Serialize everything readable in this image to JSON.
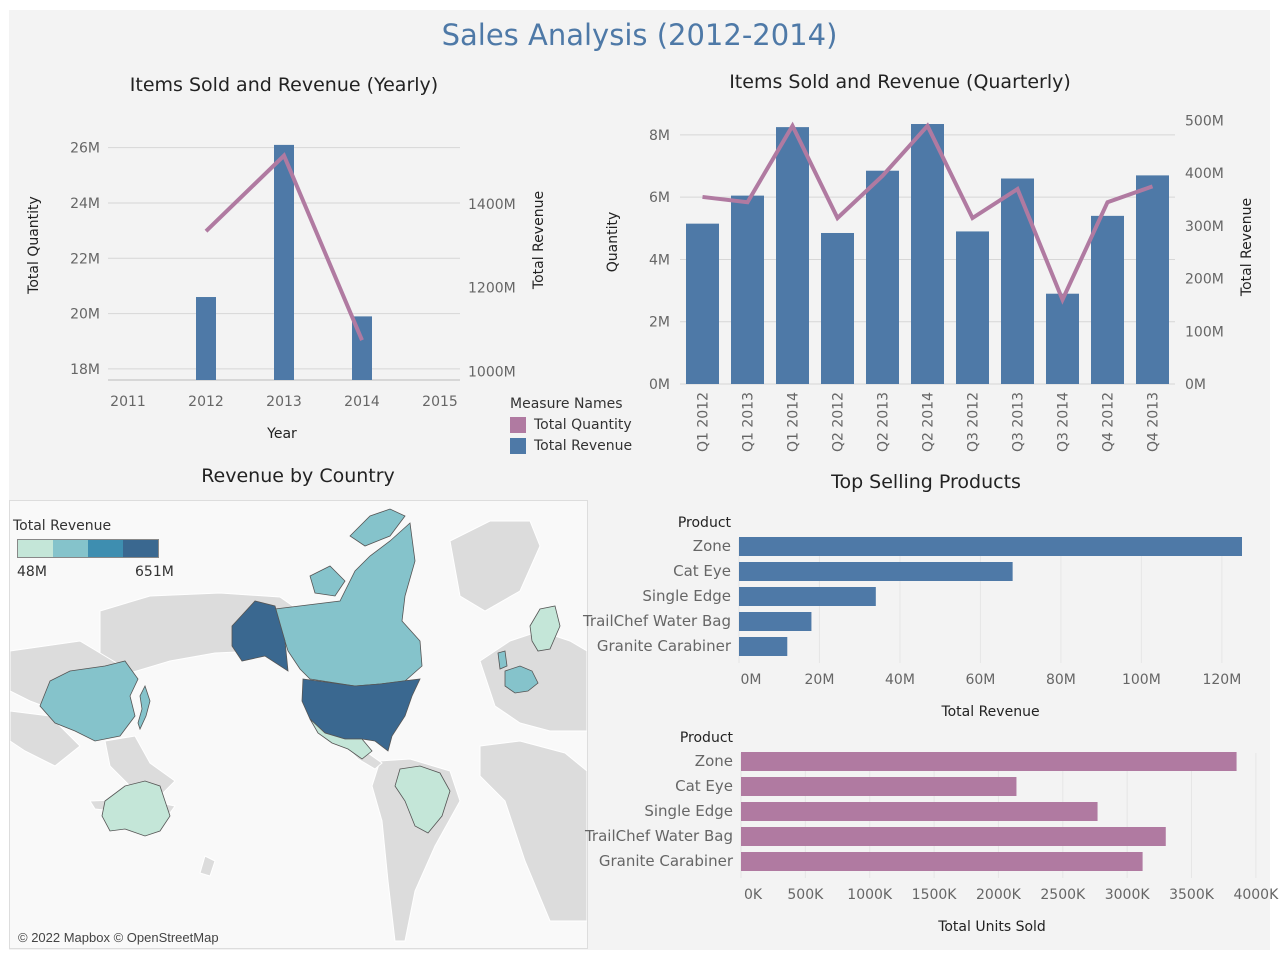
{
  "dashboard": {
    "title": "Sales Analysis (2012-2014)"
  },
  "legend": {
    "title": "Measure Names",
    "items": [
      {
        "label": "Total Quantity",
        "color": "#b07aa1"
      },
      {
        "label": "Total Revenue",
        "color": "#4e79a7"
      }
    ]
  },
  "map": {
    "title": "Revenue by Country",
    "legend_title": "Total Revenue",
    "legend_min": "48M",
    "legend_max": "651M",
    "color_scale": [
      "#c4e6d8",
      "#85c3cb",
      "#3e8eb0",
      "#3a6890"
    ],
    "credit": "© 2022 Mapbox © OpenStreetMap",
    "countries_shaded": [
      "United States",
      "Canada",
      "Mexico",
      "Alaska (US)",
      "China",
      "Japan",
      "Australia",
      "Brazil",
      "Germany",
      "France",
      "United Kingdom",
      "Sweden",
      "Finland"
    ]
  },
  "chart_data": [
    {
      "id": "yearly",
      "type": "bar",
      "title": "Items Sold and Revenue (Yearly)",
      "xlabel": "Year",
      "ylabel": "Total Quantity",
      "y2label": "Total Revenue",
      "x_ticks": [
        "2011",
        "2012",
        "2013",
        "2014",
        "2015"
      ],
      "categories": [
        "2012",
        "2013",
        "2014"
      ],
      "ylim": [
        17.6,
        27
      ],
      "y_ticks": [
        "18M",
        "20M",
        "22M",
        "24M",
        "26M"
      ],
      "y_tick_values": [
        18,
        20,
        22,
        24,
        26
      ],
      "y2lim": [
        980,
        1600
      ],
      "y2_ticks": [
        "1000M",
        "1200M",
        "1400M"
      ],
      "y2_tick_values": [
        1000,
        1200,
        1400
      ],
      "series": [
        {
          "name": "Total Revenue",
          "kind": "bar",
          "axis": "left",
          "color": "#4e79a7",
          "values": [
            20.6,
            26.1,
            19.9
          ]
        },
        {
          "name": "Total Quantity",
          "kind": "line",
          "axis": "right",
          "color": "#b07aa1",
          "values": [
            1335,
            1515,
            1075
          ]
        }
      ]
    },
    {
      "id": "quarterly",
      "type": "bar",
      "title": "Items Sold and Revenue (Quarterly)",
      "ylabel": "Quantity",
      "y2label": "Total Revenue",
      "categories": [
        "Q1 2012",
        "Q1 2013",
        "Q1 2014",
        "Q2 2012",
        "Q2 2013",
        "Q2 2014",
        "Q3 2012",
        "Q3 2013",
        "Q3 2014",
        "Q4 2012",
        "Q4 2013"
      ],
      "ylim": [
        0,
        8.8
      ],
      "y_ticks": [
        "0M",
        "2M",
        "4M",
        "6M",
        "8M"
      ],
      "y_tick_values": [
        0,
        2,
        4,
        6,
        8
      ],
      "y2lim": [
        0,
        520
      ],
      "y2_ticks": [
        "0M",
        "100M",
        "200M",
        "300M",
        "400M",
        "500M"
      ],
      "y2_tick_values": [
        0,
        100,
        200,
        300,
        400,
        500
      ],
      "series": [
        {
          "name": "Total Revenue",
          "kind": "bar",
          "axis": "left",
          "color": "#4e79a7",
          "values": [
            5.15,
            6.05,
            8.25,
            4.85,
            6.85,
            8.35,
            4.9,
            6.6,
            2.9,
            5.4,
            6.7
          ]
        },
        {
          "name": "Total Quantity",
          "kind": "line",
          "axis": "right",
          "color": "#b07aa1",
          "values": [
            355,
            345,
            490,
            315,
            395,
            490,
            315,
            370,
            160,
            345,
            375
          ]
        }
      ]
    },
    {
      "id": "top_revenue",
      "type": "bar",
      "orientation": "horizontal",
      "title": "Top Selling Products",
      "ycat_title": "Product",
      "xlabel": "Total Revenue",
      "categories": [
        "Zone",
        "Cat Eye",
        "Single Edge",
        "TrailChef Water Bag",
        "Granite Carabiner"
      ],
      "values": [
        125,
        68,
        34,
        18,
        12
      ],
      "unit": "M",
      "xlim": [
        0,
        125
      ],
      "x_ticks": [
        "0M",
        "20M",
        "40M",
        "60M",
        "80M",
        "100M",
        "120M"
      ],
      "x_tick_values": [
        0,
        20,
        40,
        60,
        80,
        100,
        120
      ],
      "color": "#4e79a7"
    },
    {
      "id": "top_units",
      "type": "bar",
      "orientation": "horizontal",
      "ycat_title": "Product",
      "xlabel": "Total Units Sold",
      "categories": [
        "Zone",
        "Cat Eye",
        "Single Edge",
        "TrailChef Water Bag",
        "Granite Carabiner"
      ],
      "values": [
        3850,
        2140,
        2770,
        3300,
        3120
      ],
      "unit": "K",
      "xlim": [
        0,
        3900
      ],
      "x_ticks": [
        "0K",
        "500K",
        "1000K",
        "1500K",
        "2000K",
        "2500K",
        "3000K",
        "3500K",
        "4000K"
      ],
      "x_tick_values": [
        0,
        500,
        1000,
        1500,
        2000,
        2500,
        3000,
        3500,
        4000
      ],
      "color": "#b07aa1"
    }
  ]
}
